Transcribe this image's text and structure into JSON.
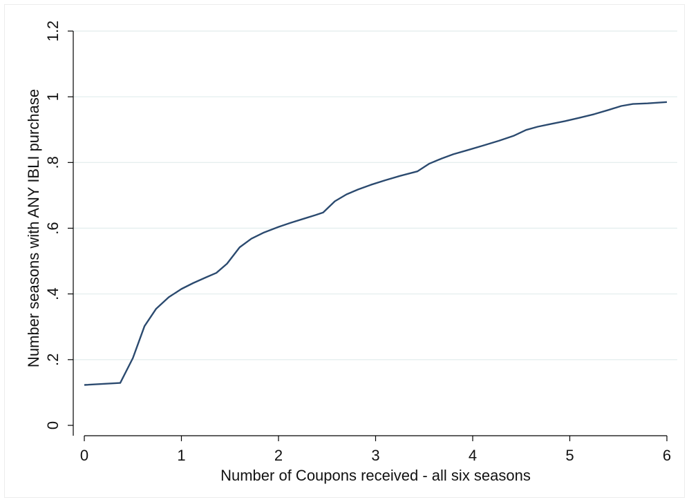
{
  "chart_data": {
    "type": "line",
    "title": "",
    "xlabel": "Number of Coupons received - all six seasons",
    "ylabel": "Number seasons with ANY IBLI purchase",
    "xlim": [
      0,
      6
    ],
    "ylim": [
      0,
      1.2
    ],
    "xticks": [
      0,
      1,
      2,
      3,
      4,
      5,
      6
    ],
    "xtick_labels": [
      "0",
      "1",
      "2",
      "3",
      "4",
      "5",
      "6"
    ],
    "yticks": [
      0,
      0.2,
      0.4,
      0.6,
      0.8,
      1.0,
      1.2
    ],
    "ytick_labels": [
      "0",
      ".2",
      ".4",
      ".6",
      ".8",
      "1",
      "1.2"
    ],
    "grid": true,
    "line_color": "#2b4a6f",
    "gridline_color": "#e6efef",
    "series": [
      {
        "x": [
          0,
          0.37,
          0.5,
          0.62,
          0.74,
          0.87,
          1.0,
          1.12,
          1.25,
          1.36,
          1.47,
          1.6,
          1.72,
          1.85,
          2.0,
          2.12,
          2.25,
          2.38,
          2.46,
          2.58,
          2.7,
          2.82,
          2.95,
          3.1,
          3.25,
          3.43,
          3.55,
          3.68,
          3.8,
          3.95,
          4.1,
          4.27,
          4.42,
          4.55,
          4.67,
          4.8,
          4.95,
          5.1,
          5.25,
          5.4,
          5.53,
          5.65,
          5.8,
          6.0
        ],
        "values": [
          0.123,
          0.129,
          0.205,
          0.302,
          0.355,
          0.39,
          0.415,
          0.433,
          0.45,
          0.464,
          0.492,
          0.542,
          0.568,
          0.587,
          0.604,
          0.616,
          0.628,
          0.64,
          0.648,
          0.682,
          0.703,
          0.718,
          0.732,
          0.746,
          0.759,
          0.773,
          0.796,
          0.812,
          0.825,
          0.838,
          0.851,
          0.866,
          0.881,
          0.899,
          0.909,
          0.917,
          0.926,
          0.936,
          0.947,
          0.96,
          0.972,
          0.978,
          0.98,
          0.984
        ]
      }
    ]
  }
}
